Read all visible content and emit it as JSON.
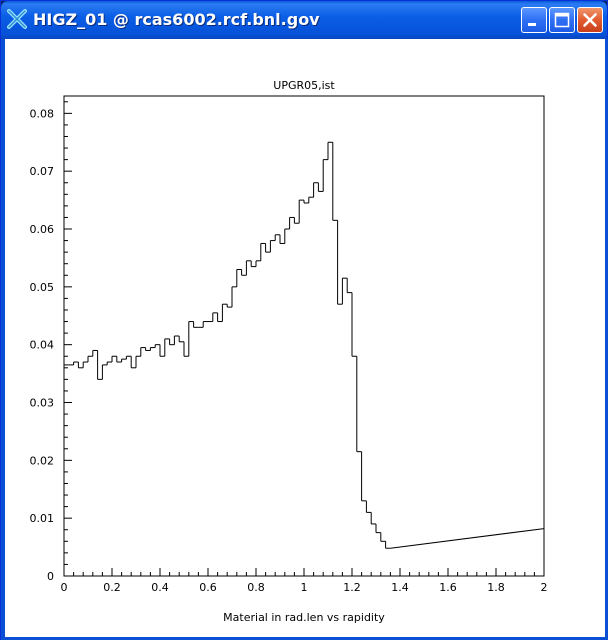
{
  "window": {
    "title": "HIGZ_01 @  rcas6002.rcf.bnl.gov",
    "icon": "higz-x-icon",
    "buttons": [
      "minimize",
      "maximize",
      "close"
    ]
  },
  "chart_data": {
    "type": "line",
    "style": "step-histogram",
    "title": "UPGR05,ist",
    "xlabel": "Material in rad.len vs rapidity",
    "ylabel": "",
    "xlim": [
      0,
      2
    ],
    "ylim": [
      0,
      0.083
    ],
    "xticks": [
      0,
      0.2,
      0.4,
      0.6,
      0.8,
      1,
      1.2,
      1.4,
      1.6,
      1.8,
      2
    ],
    "xtick_labels": [
      "0",
      "0.2",
      "0.4",
      "0.6",
      "0.8",
      "1",
      "1.2",
      "1.4",
      "1.6",
      "1.8",
      "2"
    ],
    "yticks": [
      0,
      0.01,
      0.02,
      0.03,
      0.04,
      0.05,
      0.06,
      0.07,
      0.08
    ],
    "ytick_labels": [
      "0",
      "0.01",
      "0.02",
      "0.03",
      "0.04",
      "0.05",
      "0.06",
      "0.07",
      "0.08"
    ],
    "grid": false,
    "bin_width": 0.02,
    "values": [
      0.0365,
      0.0365,
      0.037,
      0.036,
      0.037,
      0.038,
      0.039,
      0.034,
      0.0365,
      0.037,
      0.038,
      0.037,
      0.0375,
      0.038,
      0.036,
      0.038,
      0.0395,
      0.039,
      0.0395,
      0.04,
      0.038,
      0.041,
      0.04,
      0.0415,
      0.0405,
      0.038,
      0.044,
      0.043,
      0.043,
      0.044,
      0.044,
      0.0455,
      0.044,
      0.047,
      0.0465,
      0.05,
      0.053,
      0.052,
      0.0545,
      0.0535,
      0.0545,
      0.0575,
      0.056,
      0.058,
      0.059,
      0.0575,
      0.06,
      0.062,
      0.061,
      0.065,
      0.0645,
      0.0655,
      0.068,
      0.0665,
      0.072,
      0.075,
      0.0615,
      0.047,
      0.0515,
      0.049,
      0.038,
      0.0215,
      0.013,
      0.011,
      0.009,
      0.0075,
      0.006,
      0.0048
    ],
    "tail": {
      "x": [
        1.36,
        2.0
      ],
      "y": [
        0.0048,
        0.0082
      ]
    }
  }
}
